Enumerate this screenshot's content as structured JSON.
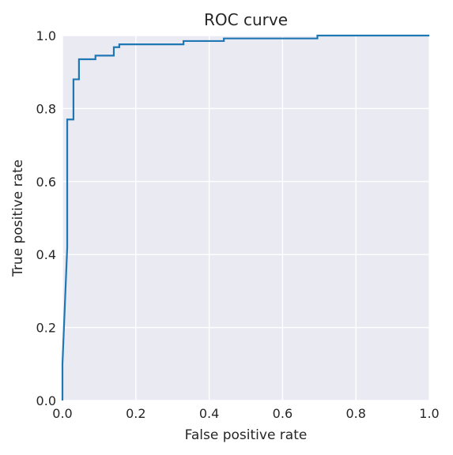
{
  "chart_data": {
    "type": "line",
    "title": "ROC curve",
    "xlabel": "False positive rate",
    "ylabel": "True positive rate",
    "xlim": [
      0.0,
      1.0
    ],
    "ylim": [
      0.0,
      1.0
    ],
    "xticks": [
      "0.0",
      "0.2",
      "0.4",
      "0.6",
      "0.8",
      "1.0"
    ],
    "yticks": [
      "0.0",
      "0.2",
      "0.4",
      "0.6",
      "0.8",
      "1.0"
    ],
    "grid": true,
    "style": "seaborn-darkgrid",
    "colors": {
      "background": "#eaeaf2",
      "grid": "#ffffff",
      "line": "#1f77b4",
      "text": "#262626"
    },
    "series": [
      {
        "x": [
          0.0,
          0.0,
          0.013,
          0.013,
          0.03,
          0.03,
          0.045,
          0.045,
          0.09,
          0.09,
          0.14,
          0.14,
          0.155,
          0.155,
          0.33,
          0.33,
          0.44,
          0.44,
          0.695,
          0.695,
          1.0
        ],
        "y": [
          0.0,
          0.1,
          0.42,
          0.77,
          0.77,
          0.88,
          0.88,
          0.935,
          0.935,
          0.945,
          0.945,
          0.968,
          0.968,
          0.976,
          0.976,
          0.985,
          0.985,
          0.992,
          0.992,
          1.0,
          1.0
        ]
      }
    ]
  }
}
